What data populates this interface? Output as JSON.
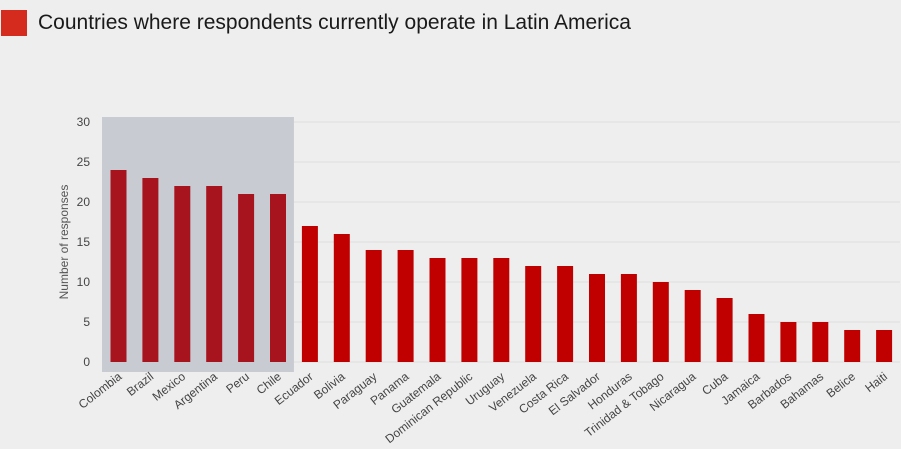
{
  "header": {
    "title": "Countries where respondents currently operate in Latin America",
    "swatch_color": "#d52b1e"
  },
  "colors": {
    "highlight_region": "#c8cbd2",
    "highlight_bar": "#a8141e",
    "bar": "#c00000",
    "gridline": "#dddddd",
    "background": "#eeeeee"
  },
  "chart_data": {
    "type": "bar",
    "title": "Countries where respondents currently operate in Latin America",
    "xlabel": "",
    "ylabel": "Number of responses",
    "ylim": [
      0,
      30
    ],
    "yticks": [
      0,
      5,
      10,
      15,
      20,
      25,
      30
    ],
    "grid": true,
    "highlighted_count": 6,
    "categories": [
      "Colombia",
      "Brazil",
      "Mexico",
      "Argentina",
      "Peru",
      "Chile",
      "Ecuador",
      "Bolivia",
      "Paraguay",
      "Panama",
      "Guatemala",
      "Dominican Republic",
      "Uruguay",
      "Venezuela",
      "Costa Rica",
      "El Salvador",
      "Honduras",
      "Trinidad & Tobago",
      "Nicaragua",
      "Cuba",
      "Jamaica",
      "Barbados",
      "Bahamas",
      "Belice",
      "Haiti"
    ],
    "values": [
      24,
      23,
      22,
      22,
      21,
      21,
      17,
      16,
      14,
      14,
      13,
      13,
      13,
      12,
      12,
      11,
      11,
      10,
      9,
      8,
      6,
      5,
      5,
      4,
      4
    ]
  }
}
